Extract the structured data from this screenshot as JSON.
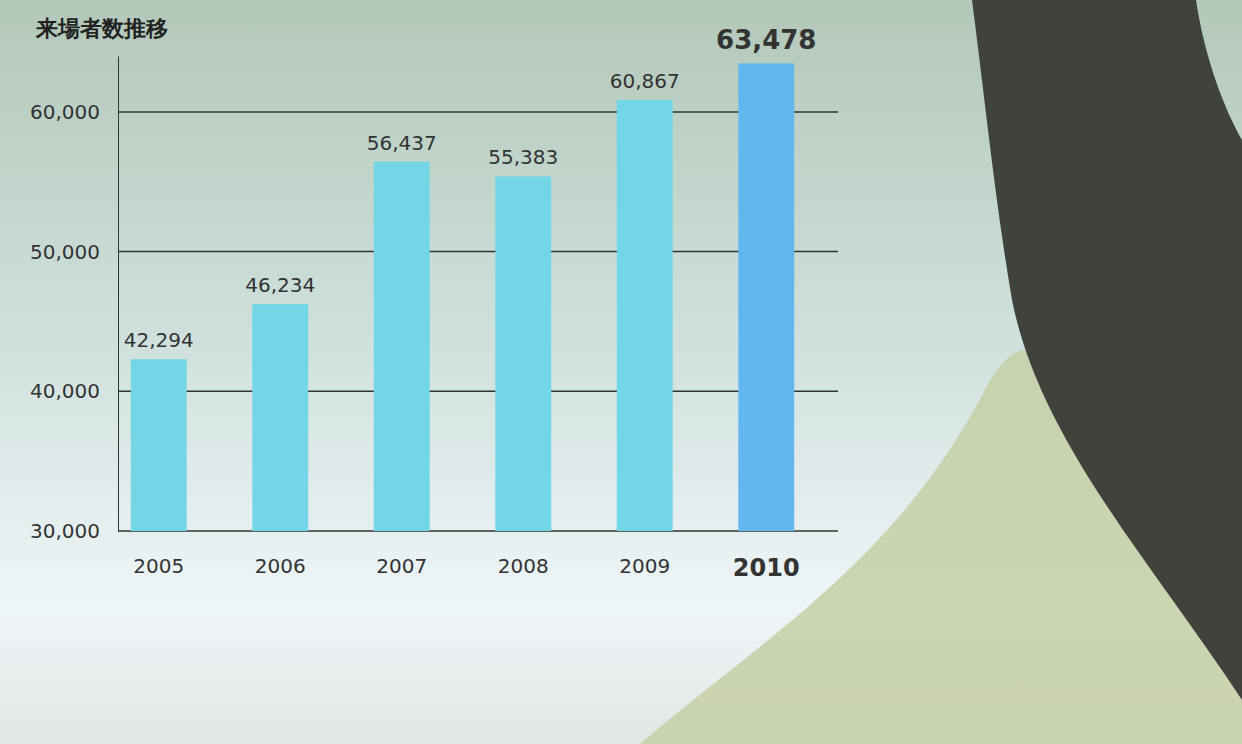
{
  "chart_data": {
    "type": "bar",
    "title": "来場者数推移",
    "categories": [
      "2005",
      "2006",
      "2007",
      "2008",
      "2009",
      "2010"
    ],
    "values": [
      42294,
      46234,
      56437,
      55383,
      60867,
      63478
    ],
    "value_labels": [
      "42,294",
      "46,234",
      "56,437",
      "55,383",
      "60,867",
      "63,478"
    ],
    "colors": [
      "#72d6e6",
      "#72d6e6",
      "#72d6e6",
      "#72d6e6",
      "#72d6e6",
      "#62b8ee"
    ],
    "ylim": [
      30000,
      64000
    ],
    "yticks": [
      {
        "value": 30000,
        "label": "30,000"
      },
      {
        "value": 40000,
        "label": "40,000"
      },
      {
        "value": 50000,
        "label": "50,000"
      },
      {
        "value": 60000,
        "label": "60,000"
      }
    ],
    "grid": true,
    "data_labels": true
  }
}
